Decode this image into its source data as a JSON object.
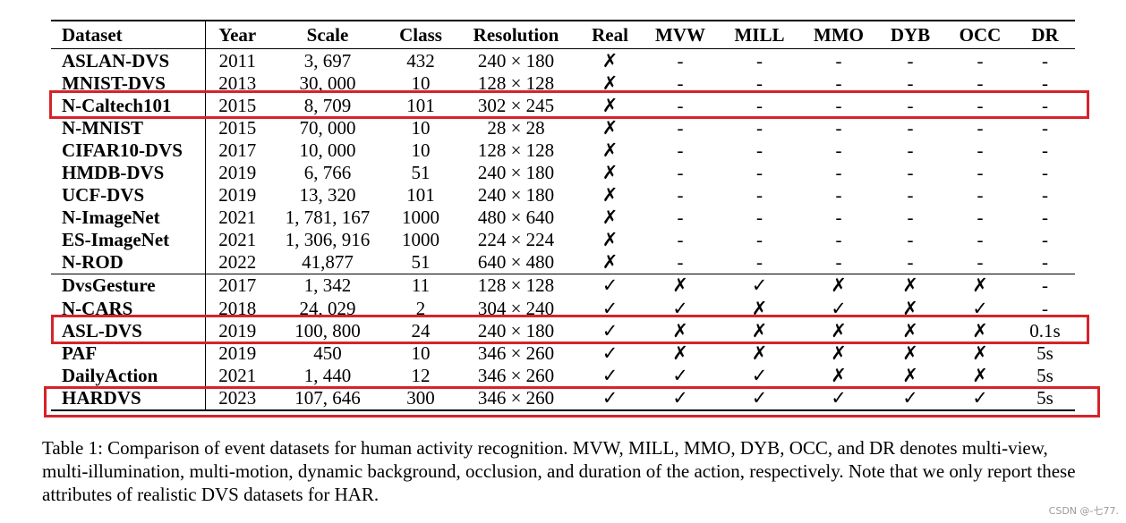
{
  "table": {
    "headers": [
      "Dataset",
      "Year",
      "Scale",
      "Class",
      "Resolution",
      "Real",
      "MVW",
      "MILL",
      "MMO",
      "DYB",
      "OCC",
      "DR"
    ],
    "rows": [
      [
        "ASLAN-DVS",
        "2011",
        "3, 697",
        "432",
        "240 × 180",
        "✗",
        "-",
        "-",
        "-",
        "-",
        "-",
        "-"
      ],
      [
        "MNIST-DVS",
        "2013",
        "30, 000",
        "10",
        "128 × 128",
        "✗",
        "-",
        "-",
        "-",
        "-",
        "-",
        "-"
      ],
      [
        "N-Caltech101",
        "2015",
        "8, 709",
        "101",
        "302 × 245",
        "✗",
        "-",
        "-",
        "-",
        "-",
        "-",
        "-"
      ],
      [
        "N-MNIST",
        "2015",
        "70, 000",
        "10",
        "28 × 28",
        "✗",
        "-",
        "-",
        "-",
        "-",
        "-",
        "-"
      ],
      [
        "CIFAR10-DVS",
        "2017",
        "10, 000",
        "10",
        "128 × 128",
        "✗",
        "-",
        "-",
        "-",
        "-",
        "-",
        "-"
      ],
      [
        "HMDB-DVS",
        "2019",
        "6, 766",
        "51",
        "240 × 180",
        "✗",
        "-",
        "-",
        "-",
        "-",
        "-",
        "-"
      ],
      [
        "UCF-DVS",
        "2019",
        "13, 320",
        "101",
        "240 × 180",
        "✗",
        "-",
        "-",
        "-",
        "-",
        "-",
        "-"
      ],
      [
        "N-ImageNet",
        "2021",
        "1, 781, 167",
        "1000",
        "480 × 640",
        "✗",
        "-",
        "-",
        "-",
        "-",
        "-",
        "-"
      ],
      [
        "ES-ImageNet",
        "2021",
        "1, 306, 916",
        "1000",
        "224 × 224",
        "✗",
        "-",
        "-",
        "-",
        "-",
        "-",
        "-"
      ],
      [
        "N-ROD",
        "2022",
        "41,877",
        "51",
        "640 × 480",
        "✗",
        "-",
        "-",
        "-",
        "-",
        "-",
        "-"
      ],
      [
        "DvsGesture",
        "2017",
        "1, 342",
        "11",
        "128 × 128",
        "✓",
        "✗",
        "✓",
        "✗",
        "✗",
        "✗",
        "-"
      ],
      [
        "N-CARS",
        "2018",
        "24, 029",
        "2",
        "304 × 240",
        "✓",
        "✓",
        "✗",
        "✓",
        "✗",
        "✓",
        "-"
      ],
      [
        "ASL-DVS",
        "2019",
        "100, 800",
        "24",
        "240 × 180",
        "✓",
        "✗",
        "✗",
        "✗",
        "✗",
        "✗",
        "0.1s"
      ],
      [
        "PAF",
        "2019",
        "450",
        "10",
        "346 × 260",
        "✓",
        "✗",
        "✗",
        "✗",
        "✗",
        "✗",
        "5s"
      ],
      [
        "DailyAction",
        "2021",
        "1, 440",
        "12",
        "346 × 260",
        "✓",
        "✓",
        "✓",
        "✗",
        "✗",
        "✗",
        "5s"
      ],
      [
        "HARDVS",
        "2023",
        "107, 646",
        "300",
        "346 × 260",
        "✓",
        "✓",
        "✓",
        "✓",
        "✓",
        "✓",
        "5s"
      ]
    ]
  },
  "caption": "Table 1: Comparison of event datasets for human activity recognition. MVW, MILL, MMO, DYB, OCC, and DR denotes multi-view, multi-illumination, multi-motion, dynamic background, occlusion, and duration of the action, respectively. Note that we only report these attributes of realistic DVS datasets for HAR.",
  "watermark": "CSDN @-七77.",
  "highlight_color": "#d6232a"
}
